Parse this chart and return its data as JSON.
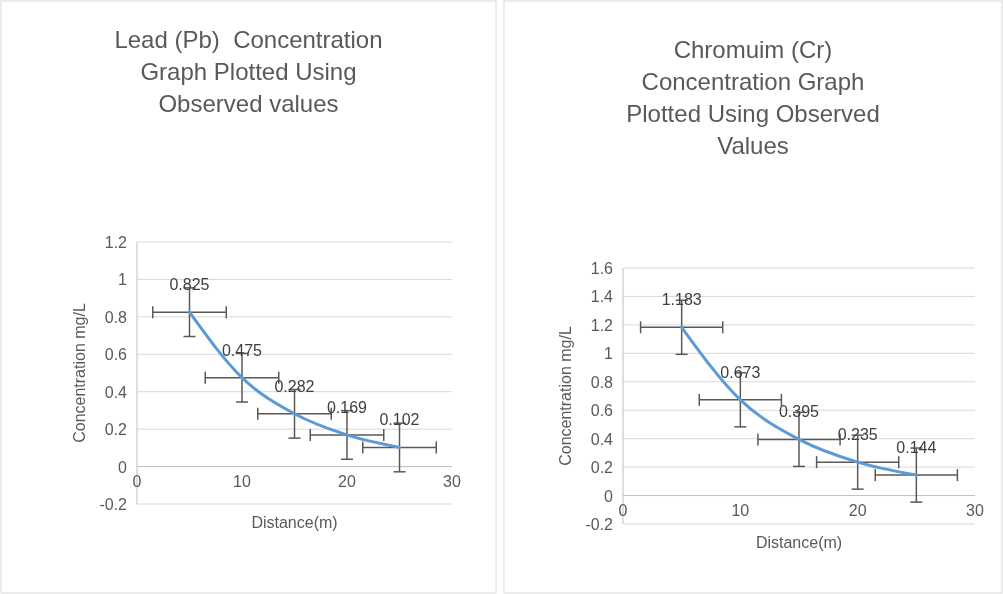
{
  "chart_data": [
    {
      "type": "line",
      "title": "Lead (Pb)  Concentration Graph Plotted Using Observed values",
      "xlabel": "Distance(m)",
      "ylabel": "Concentration mg/L",
      "x": [
        5,
        10,
        15,
        20,
        25
      ],
      "series": [
        {
          "color": "#5b9bd5",
          "values": [
            0.825,
            0.475,
            0.282,
            0.169,
            0.102
          ],
          "errors": [
            0.13,
            0.13,
            0.13,
            0.13,
            0.13
          ],
          "xerrors": [
            3.5,
            3.5,
            3.5,
            3.5,
            3.5
          ]
        }
      ],
      "xlim": [
        0,
        30
      ],
      "xticks": [
        0,
        10,
        20,
        30
      ],
      "ylim": [
        -0.2,
        1.2
      ],
      "yticks": [
        -0.2,
        0,
        0.2,
        0.4,
        0.6,
        0.8,
        1,
        1.2
      ],
      "grid": "y",
      "data_labels": true,
      "marker": "none"
    },
    {
      "type": "line",
      "title": "Chromuim (Cr) Concentration Graph Plotted Using Observed Values",
      "xlabel": "Distance(m)",
      "ylabel": "Concentration mg/L",
      "x": [
        5,
        10,
        15,
        20,
        25
      ],
      "series": [
        {
          "color": "#5b9bd5",
          "values": [
            1.183,
            0.673,
            0.395,
            0.235,
            0.144
          ],
          "errors": [
            0.19,
            0.19,
            0.19,
            0.19,
            0.19
          ],
          "xerrors": [
            3.5,
            3.5,
            3.5,
            3.5,
            3.5
          ]
        }
      ],
      "xlim": [
        0,
        30
      ],
      "xticks": [
        0,
        10,
        20,
        30
      ],
      "ylim": [
        -0.2,
        1.6
      ],
      "yticks": [
        -0.2,
        0,
        0.2,
        0.4,
        0.6,
        0.8,
        1,
        1.2,
        1.4,
        1.6
      ],
      "grid": "y",
      "data_labels": true,
      "marker": "none"
    }
  ]
}
